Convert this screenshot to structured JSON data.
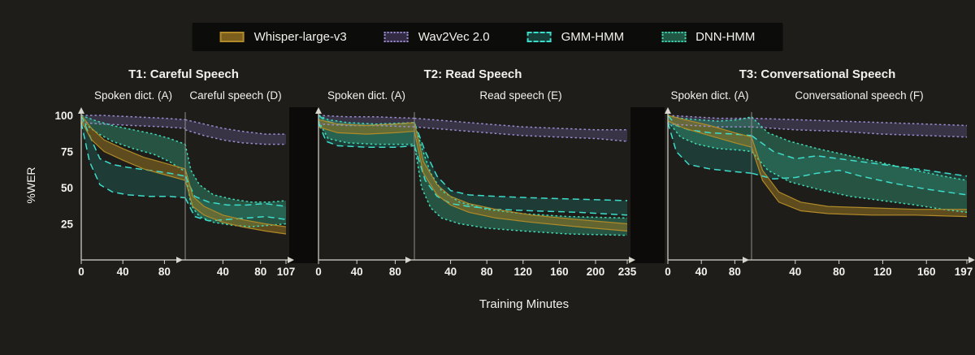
{
  "figure": {
    "bg": "#1e1d19",
    "legend_bg": "#0c0c0a",
    "gap_color": "#0c0b09",
    "axis_color": "#d8d6cd",
    "divider_color": "#8e8d86",
    "text_color": "#f2f1ec"
  },
  "legend": {
    "items": [
      {
        "id": "whisper",
        "label": "Whisper-large-v3",
        "stroke": "#b08a28",
        "fill": "rgba(150,115,35,0.55)",
        "swatch_fill": "#7d5f1d",
        "dash": "solid"
      },
      {
        "id": "wav2vec",
        "label": "Wav2Vec 2.0",
        "stroke": "#9a8ccf",
        "fill": "rgba(122,104,174,0.30)",
        "swatch_fill": "rgba(122,104,174,0.35)",
        "dash": "dotted"
      },
      {
        "id": "gmm",
        "label": "GMM-HMM",
        "stroke": "#3ddccb",
        "fill": "rgba(30,105,95,0.40)",
        "swatch_fill": "rgba(30,105,95,0.55)",
        "dash": "dashed"
      },
      {
        "id": "dnn",
        "label": "DNN-HMM",
        "stroke": "#3fd9b5",
        "fill": "rgba(47,140,108,0.50)",
        "swatch_fill": "rgba(47,140,108,0.6)",
        "dash": "dotted"
      }
    ]
  },
  "chart_data": {
    "type": "area",
    "title": "",
    "xlabel": "Training Minutes",
    "ylabel": "%WER",
    "y_ticks": [
      25,
      50,
      75,
      100
    ],
    "ylim": [
      0,
      105
    ],
    "legend_position": "top",
    "grid": false,
    "series_note": "bands are [x_minutes, lower_%WER, upper_%WER] per axis segment",
    "panels": [
      {
        "id": "t1",
        "title": "T1: Careful Speech",
        "seg_a": {
          "label": "Spoken dict. (A)",
          "ticks": [
            0,
            40,
            80
          ],
          "max": 100
        },
        "seg_b": {
          "label": "Careful speech (D)",
          "ticks": [
            40,
            80,
            107
          ],
          "max": 107
        },
        "bands": {
          "wav2vec": {
            "a": [
              [
                0,
                95,
                100
              ],
              [
                20,
                94,
                100
              ],
              [
                50,
                93,
                99
              ],
              [
                80,
                92,
                98
              ],
              [
                100,
                91,
                97
              ]
            ],
            "b": [
              [
                0,
                90,
                97
              ],
              [
                20,
                86,
                94
              ],
              [
                40,
                83,
                91
              ],
              [
                60,
                81,
                89
              ],
              [
                85,
                80,
                87
              ],
              [
                107,
                80,
                87
              ]
            ]
          },
          "gmm": {
            "a": [
              [
                0,
                95,
                100
              ],
              [
                8,
                68,
                86
              ],
              [
                18,
                52,
                70
              ],
              [
                30,
                47,
                66
              ],
              [
                45,
                45,
                64
              ],
              [
                65,
                44,
                62
              ],
              [
                85,
                44,
                60
              ],
              [
                100,
                43,
                58
              ]
            ],
            "b": [
              [
                0,
                43,
                58
              ],
              [
                10,
                30,
                44
              ],
              [
                25,
                27,
                40
              ],
              [
                45,
                28,
                38
              ],
              [
                65,
                29,
                38
              ],
              [
                85,
                30,
                39
              ],
              [
                107,
                28,
                37
              ]
            ]
          },
          "dnn": {
            "a": [
              [
                0,
                96,
                100
              ],
              [
                15,
                88,
                96
              ],
              [
                30,
                82,
                93
              ],
              [
                50,
                77,
                90
              ],
              [
                70,
                73,
                87
              ],
              [
                85,
                68,
                84
              ],
              [
                100,
                61,
                80
              ]
            ],
            "b": [
              [
                0,
                61,
                80
              ],
              [
                6,
                38,
                62
              ],
              [
                15,
                30,
                52
              ],
              [
                30,
                26,
                45
              ],
              [
                50,
                24,
                42
              ],
              [
                70,
                23,
                40
              ],
              [
                90,
                24,
                40
              ],
              [
                107,
                25,
                41
              ]
            ]
          },
          "whisper": {
            "a": [
              [
                0,
                96,
                100
              ],
              [
                10,
                83,
                91
              ],
              [
                22,
                75,
                83
              ],
              [
                40,
                69,
                77
              ],
              [
                60,
                63,
                71
              ],
              [
                80,
                59,
                67
              ],
              [
                100,
                55,
                63
              ]
            ],
            "b": [
              [
                0,
                55,
                63
              ],
              [
                8,
                37,
                44
              ],
              [
                20,
                31,
                37
              ],
              [
                40,
                26,
                31
              ],
              [
                60,
                23,
                28
              ],
              [
                85,
                20,
                25
              ],
              [
                107,
                18,
                23
              ]
            ]
          }
        }
      },
      {
        "id": "t2",
        "title": "T2: Read Speech",
        "seg_a": {
          "label": "Spoken dict. (A)",
          "ticks": [
            0,
            40,
            80
          ],
          "max": 100
        },
        "seg_b": {
          "label": "Read speech (E)",
          "ticks": [
            40,
            80,
            120,
            160,
            200,
            235
          ],
          "max": 235
        },
        "bands": {
          "wav2vec": {
            "a": [
              [
                0,
                94,
                100
              ],
              [
                30,
                93,
                99
              ],
              [
                60,
                93,
                99
              ],
              [
                100,
                92,
                98
              ]
            ],
            "b": [
              [
                0,
                92,
                98
              ],
              [
                40,
                90,
                96
              ],
              [
                80,
                88,
                94
              ],
              [
                120,
                86,
                92
              ],
              [
                160,
                85,
                91
              ],
              [
                200,
                84,
                90
              ],
              [
                235,
                82,
                90
              ]
            ]
          },
          "gmm": {
            "a": [
              [
                0,
                95,
                100
              ],
              [
                8,
                82,
                96
              ],
              [
                20,
                79,
                94
              ],
              [
                50,
                78,
                93
              ],
              [
                80,
                78,
                94
              ],
              [
                100,
                79,
                95
              ]
            ],
            "b": [
              [
                0,
                79,
                95
              ],
              [
                12,
                55,
                75
              ],
              [
                25,
                44,
                58
              ],
              [
                40,
                39,
                48
              ],
              [
                60,
                37,
                45
              ],
              [
                90,
                35,
                44
              ],
              [
                130,
                34,
                43
              ],
              [
                180,
                33,
                42
              ],
              [
                235,
                31,
                41
              ]
            ]
          },
          "dnn": {
            "a": [
              [
                0,
                96,
                100
              ],
              [
                10,
                84,
                97
              ],
              [
                30,
                81,
                95
              ],
              [
                60,
                80,
                94
              ],
              [
                100,
                80,
                95
              ]
            ],
            "b": [
              [
                0,
                80,
                95
              ],
              [
                8,
                50,
                78
              ],
              [
                18,
                36,
                60
              ],
              [
                30,
                29,
                48
              ],
              [
                50,
                25,
                40
              ],
              [
                80,
                22,
                35
              ],
              [
                120,
                20,
                32
              ],
              [
                170,
                18,
                30
              ],
              [
                235,
                17,
                29
              ]
            ]
          },
          "whisper": {
            "a": [
              [
                0,
                92,
                97
              ],
              [
                20,
                88,
                94
              ],
              [
                50,
                87,
                93
              ],
              [
                80,
                88,
                94
              ],
              [
                100,
                89,
                95
              ]
            ],
            "b": [
              [
                0,
                89,
                95
              ],
              [
                10,
                60,
                68
              ],
              [
                25,
                45,
                52
              ],
              [
                40,
                38,
                44
              ],
              [
                60,
                33,
                39
              ],
              [
                90,
                29,
                35
              ],
              [
                130,
                26,
                31
              ],
              [
                180,
                23,
                28
              ],
              [
                235,
                20,
                25
              ]
            ]
          }
        }
      },
      {
        "id": "t3",
        "title": "T3: Conversational Speech",
        "seg_a": {
          "label": "Spoken dict. (A)",
          "ticks": [
            0,
            40,
            80
          ],
          "max": 100
        },
        "seg_b": {
          "label": "Conversational speech (F)",
          "ticks": [
            40,
            80,
            120,
            160,
            197
          ],
          "max": 197
        },
        "bands": {
          "wav2vec": {
            "a": [
              [
                0,
                94,
                100
              ],
              [
                30,
                93,
                99
              ],
              [
                60,
                92,
                98
              ],
              [
                100,
                92,
                98
              ]
            ],
            "b": [
              [
                0,
                92,
                98
              ],
              [
                40,
                90,
                97
              ],
              [
                80,
                89,
                96
              ],
              [
                120,
                87,
                95
              ],
              [
                160,
                86,
                94
              ],
              [
                197,
                85,
                93
              ]
            ]
          },
          "gmm": {
            "a": [
              [
                0,
                95,
                100
              ],
              [
                10,
                75,
                93
              ],
              [
                25,
                66,
                90
              ],
              [
                50,
                63,
                88
              ],
              [
                80,
                61,
                87
              ],
              [
                100,
                60,
                86
              ]
            ],
            "b": [
              [
                0,
                60,
                86
              ],
              [
                20,
                56,
                75
              ],
              [
                40,
                57,
                70
              ],
              [
                60,
                60,
                72
              ],
              [
                80,
                62,
                70
              ],
              [
                100,
                58,
                68
              ],
              [
                130,
                53,
                65
              ],
              [
                160,
                49,
                62
              ],
              [
                197,
                45,
                58
              ]
            ]
          },
          "dnn": {
            "a": [
              [
                0,
                96,
                100
              ],
              [
                15,
                85,
                98
              ],
              [
                35,
                80,
                97
              ],
              [
                60,
                77,
                96
              ],
              [
                85,
                76,
                97
              ],
              [
                100,
                75,
                99
              ]
            ],
            "b": [
              [
                0,
                75,
                99
              ],
              [
                15,
                62,
                88
              ],
              [
                35,
                54,
                82
              ],
              [
                60,
                49,
                77
              ],
              [
                90,
                44,
                72
              ],
              [
                120,
                41,
                67
              ],
              [
                150,
                38,
                62
              ],
              [
                175,
                35,
                58
              ],
              [
                197,
                33,
                55
              ]
            ]
          },
          "whisper": {
            "a": [
              [
                0,
                96,
                100
              ],
              [
                20,
                91,
                97
              ],
              [
                50,
                86,
                93
              ],
              [
                80,
                81,
                88
              ],
              [
                100,
                78,
                85
              ]
            ],
            "b": [
              [
                0,
                78,
                85
              ],
              [
                10,
                55,
                62
              ],
              [
                25,
                40,
                47
              ],
              [
                45,
                34,
                40
              ],
              [
                70,
                32,
                37
              ],
              [
                110,
                31,
                36
              ],
              [
                150,
                31,
                35
              ],
              [
                197,
                30,
                35
              ]
            ]
          }
        }
      }
    ]
  }
}
